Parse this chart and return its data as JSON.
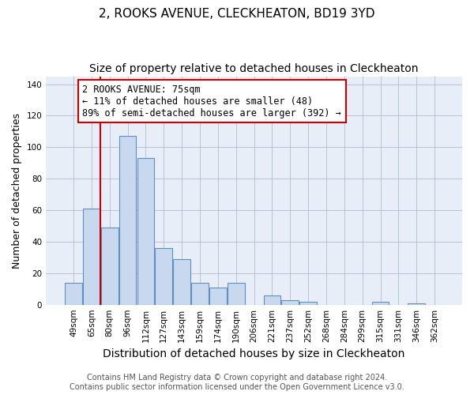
{
  "title": "2, ROOKS AVENUE, CLECKHEATON, BD19 3YD",
  "subtitle": "Size of property relative to detached houses in Cleckheaton",
  "xlabel": "Distribution of detached houses by size in Cleckheaton",
  "ylabel": "Number of detached properties",
  "categories": [
    "49sqm",
    "65sqm",
    "80sqm",
    "96sqm",
    "112sqm",
    "127sqm",
    "143sqm",
    "159sqm",
    "174sqm",
    "190sqm",
    "206sqm",
    "221sqm",
    "237sqm",
    "252sqm",
    "268sqm",
    "284sqm",
    "299sqm",
    "315sqm",
    "331sqm",
    "346sqm",
    "362sqm"
  ],
  "values": [
    14,
    61,
    49,
    107,
    93,
    36,
    29,
    14,
    11,
    14,
    0,
    6,
    3,
    2,
    0,
    0,
    0,
    2,
    0,
    1,
    0
  ],
  "bar_color": "#c8d8ee",
  "bar_edge_color": "#6090c0",
  "vline_color": "#cc0000",
  "annotation_text": "2 ROOKS AVENUE: 75sqm\n← 11% of detached houses are smaller (48)\n89% of semi-detached houses are larger (392) →",
  "annotation_box_color": "#ffffff",
  "annotation_box_edge": "#cc0000",
  "plot_bg_color": "#e8eef8",
  "ylim": [
    0,
    145
  ],
  "yticks": [
    0,
    20,
    40,
    60,
    80,
    100,
    120,
    140
  ],
  "footer_text": "Contains HM Land Registry data © Crown copyright and database right 2024.\nContains public sector information licensed under the Open Government Licence v3.0.",
  "title_fontsize": 11,
  "subtitle_fontsize": 10,
  "xlabel_fontsize": 10,
  "ylabel_fontsize": 9,
  "tick_fontsize": 7.5,
  "annotation_fontsize": 8.5,
  "footer_fontsize": 7
}
